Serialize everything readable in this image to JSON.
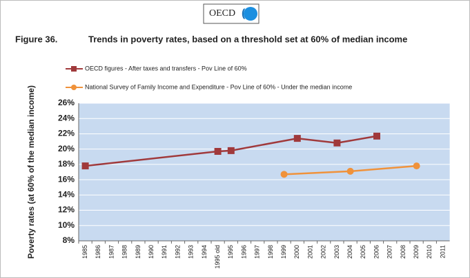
{
  "logo": "OECD",
  "chart_data": {
    "type": "line",
    "figure_label": "Figure 36.",
    "title": "Trends in poverty rates, based on a threshold set at 60% of median income",
    "y_label": "Poverty rates (at 60% of the median income)",
    "categories": [
      "1985",
      "1986",
      "1987",
      "1988",
      "1989",
      "1990",
      "1991",
      "1992",
      "1993",
      "1994",
      "1995 old",
      "1995",
      "1996",
      "1997",
      "1998",
      "1999",
      "2000",
      "2001",
      "2002",
      "2003",
      "2004",
      "2005",
      "2006",
      "2007",
      "2008",
      "2009",
      "2010",
      "2011"
    ],
    "series": [
      {
        "name": "OECD figures - After taxes and transfers - Pov Line of 60%",
        "color": "#a0393b",
        "marker": "square",
        "x": [
          "1985",
          "1995 old",
          "1995",
          "2000",
          "2003",
          "2006"
        ],
        "values": [
          17.8,
          19.7,
          19.8,
          21.4,
          20.8,
          21.7
        ]
      },
      {
        "name": "National Survey of Family Income and Expenditure - Pov Line of 60% - Under the median income",
        "color": "#f0923a",
        "marker": "circle",
        "x": [
          "1999",
          "2004",
          "2009"
        ],
        "values": [
          16.7,
          17.1,
          17.8
        ]
      }
    ],
    "ylim": [
      8,
      26
    ],
    "yticks": [
      {
        "value": 8,
        "label": "8%"
      },
      {
        "value": 10,
        "label": "10%"
      },
      {
        "value": 12,
        "label": "12%"
      },
      {
        "value": 14,
        "label": "14%"
      },
      {
        "value": 16,
        "label": "16%"
      },
      {
        "value": 18,
        "label": "18%"
      },
      {
        "value": 20,
        "label": "20%"
      },
      {
        "value": 22,
        "label": "22%"
      },
      {
        "value": 24,
        "label": "24%"
      },
      {
        "value": 26,
        "label": "26%"
      }
    ],
    "grid": true,
    "plot_background": "#c8daf0"
  }
}
